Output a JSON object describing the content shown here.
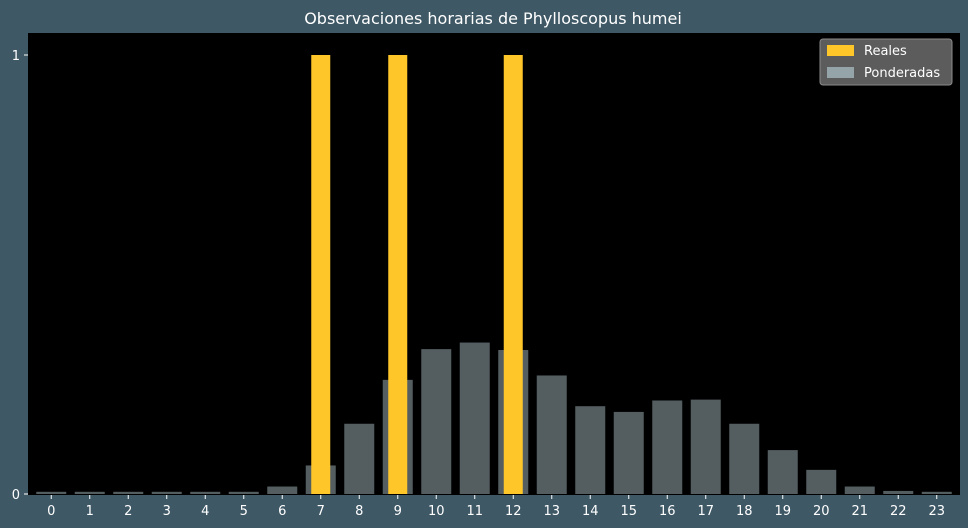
{
  "chart_data": {
    "type": "bar",
    "title": "Observaciones horarias de Phylloscopus humei",
    "xlabel": "",
    "ylabel": "",
    "categories": [
      "0",
      "1",
      "2",
      "3",
      "4",
      "5",
      "6",
      "7",
      "8",
      "9",
      "10",
      "11",
      "12",
      "13",
      "14",
      "15",
      "16",
      "17",
      "18",
      "19",
      "20",
      "21",
      "22",
      "23"
    ],
    "yticks": [
      0,
      1
    ],
    "ylim": [
      0,
      1.05
    ],
    "grid": false,
    "legend": "top-right",
    "series": [
      {
        "name": "Reales",
        "color": "#ffc62a",
        "values": [
          0,
          0,
          0,
          0,
          0,
          0,
          0,
          1,
          0,
          1,
          0,
          0,
          1,
          0,
          0,
          0,
          0,
          0,
          0,
          0,
          0,
          0,
          0,
          0
        ]
      },
      {
        "name": "Ponderadas",
        "color": "#a7bcc2",
        "opacity": 0.5,
        "values": [
          0.005,
          0.005,
          0.005,
          0.005,
          0.005,
          0.005,
          0.017,
          0.065,
          0.16,
          0.26,
          0.33,
          0.345,
          0.328,
          0.27,
          0.2,
          0.187,
          0.213,
          0.215,
          0.16,
          0.1,
          0.055,
          0.017,
          0.007,
          0.005
        ]
      }
    ],
    "colors": {
      "background": "#3f5866",
      "plot_background": "#000000",
      "text": "#ffffff"
    }
  }
}
